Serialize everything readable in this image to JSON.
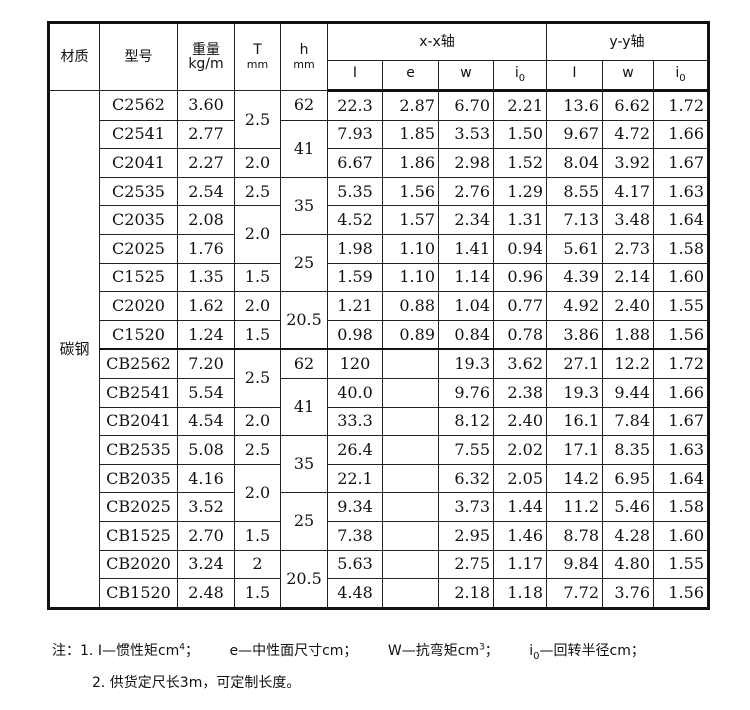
{
  "header": {
    "material": "材质",
    "model": "型号",
    "weight": "重量",
    "weight_unit": "kg/m",
    "T": "T",
    "T_unit": "mm",
    "h": "h",
    "h_unit": "mm",
    "xx_axis": "x-x轴",
    "yy_axis": "y-y轴",
    "xx_cols": [
      {
        "main": "I",
        "sub": ""
      },
      {
        "main": "e",
        "sub": ""
      },
      {
        "main": "w",
        "sub": ""
      },
      {
        "main": "i",
        "sub": "0"
      }
    ],
    "yy_cols": [
      {
        "main": "I",
        "sub": ""
      },
      {
        "main": "w",
        "sub": ""
      },
      {
        "main": "i",
        "sub": "0"
      }
    ]
  },
  "material": "碳钢",
  "rows": [
    {
      "model": "C2562",
      "weight": "3.60",
      "T": "2.5",
      "h": "62",
      "xx": [
        "22.3",
        "2.87",
        "6.70",
        "2.21"
      ],
      "yy": [
        "13.6",
        "6.62",
        "1.72"
      ]
    },
    {
      "model": "C2541",
      "weight": "2.77",
      "T": null,
      "h": "41",
      "xx": [
        "7.93",
        "1.85",
        "3.53",
        "1.50"
      ],
      "yy": [
        "9.67",
        "4.72",
        "1.66"
      ]
    },
    {
      "model": "C2041",
      "weight": "2.27",
      "T": "2.0",
      "h": null,
      "xx": [
        "6.67",
        "1.86",
        "2.98",
        "1.52"
      ],
      "yy": [
        "8.04",
        "3.92",
        "1.67"
      ]
    },
    {
      "model": "C2535",
      "weight": "2.54",
      "T": "2.5",
      "h": "35",
      "xx": [
        "5.35",
        "1.56",
        "2.76",
        "1.29"
      ],
      "yy": [
        "8.55",
        "4.17",
        "1.63"
      ]
    },
    {
      "model": "C2035",
      "weight": "2.08",
      "T": "2.0",
      "h": null,
      "xx": [
        "4.52",
        "1.57",
        "2.34",
        "1.31"
      ],
      "yy": [
        "7.13",
        "3.48",
        "1.64"
      ]
    },
    {
      "model": "C2025",
      "weight": "1.76",
      "T": null,
      "h": "25",
      "xx": [
        "1.98",
        "1.10",
        "1.41",
        "0.94"
      ],
      "yy": [
        "5.61",
        "2.73",
        "1.58"
      ]
    },
    {
      "model": "C1525",
      "weight": "1.35",
      "T": "1.5",
      "h": null,
      "xx": [
        "1.59",
        "1.10",
        "1.14",
        "0.96"
      ],
      "yy": [
        "4.39",
        "2.14",
        "1.60"
      ]
    },
    {
      "model": "C2020",
      "weight": "1.62",
      "T": "2.0",
      "h": "20.5",
      "xx": [
        "1.21",
        "0.88",
        "1.04",
        "0.77"
      ],
      "yy": [
        "4.92",
        "2.40",
        "1.55"
      ]
    },
    {
      "model": "C1520",
      "weight": "1.24",
      "T": "1.5",
      "h": null,
      "xx": [
        "0.98",
        "0.89",
        "0.84",
        "0.78"
      ],
      "yy": [
        "3.86",
        "1.88",
        "1.56"
      ]
    },
    {
      "model": "CB2562",
      "weight": "7.20",
      "T": "2.5",
      "h": "62",
      "xx": [
        "120",
        "",
        "19.3",
        "3.62"
      ],
      "yy": [
        "27.1",
        "12.2",
        "1.72"
      ]
    },
    {
      "model": "CB2541",
      "weight": "5.54",
      "T": null,
      "h": "41",
      "xx": [
        "40.0",
        "",
        "9.76",
        "2.38"
      ],
      "yy": [
        "19.3",
        "9.44",
        "1.66"
      ]
    },
    {
      "model": "CB2041",
      "weight": "4.54",
      "T": "2.0",
      "h": null,
      "xx": [
        "33.3",
        "",
        "8.12",
        "2.40"
      ],
      "yy": [
        "16.1",
        "7.84",
        "1.67"
      ]
    },
    {
      "model": "CB2535",
      "weight": "5.08",
      "T": "2.5",
      "h": "35",
      "xx": [
        "26.4",
        "",
        "7.55",
        "2.02"
      ],
      "yy": [
        "17.1",
        "8.35",
        "1.63"
      ]
    },
    {
      "model": "CB2035",
      "weight": "4.16",
      "T": "2.0",
      "h": null,
      "xx": [
        "22.1",
        "",
        "6.32",
        "2.05"
      ],
      "yy": [
        "14.2",
        "6.95",
        "1.64"
      ]
    },
    {
      "model": "CB2025",
      "weight": "3.52",
      "T": null,
      "h": "25",
      "xx": [
        "9.34",
        "",
        "3.73",
        "1.44"
      ],
      "yy": [
        "11.2",
        "5.46",
        "1.58"
      ]
    },
    {
      "model": "CB1525",
      "weight": "2.70",
      "T": "1.5",
      "h": null,
      "xx": [
        "7.38",
        "",
        "2.95",
        "1.46"
      ],
      "yy": [
        "8.78",
        "4.28",
        "1.60"
      ]
    },
    {
      "model": "CB2020",
      "weight": "3.24",
      "T": "2",
      "h": "20.5",
      "xx": [
        "5.63",
        "",
        "2.75",
        "1.17"
      ],
      "yy": [
        "9.84",
        "4.80",
        "1.55"
      ]
    },
    {
      "model": "CB1520",
      "weight": "2.48",
      "T": "1.5",
      "h": null,
      "xx": [
        "4.48",
        "",
        "2.18",
        "1.18"
      ],
      "yy": [
        "7.72",
        "3.76",
        "1.56"
      ]
    }
  ],
  "notes": {
    "prefix": "注：1. ",
    "I_def": "I—惯性矩cm",
    "I_sup": "4",
    "e_def": "e—中性面尺寸cm；",
    "W_def": "W—抗弯矩cm",
    "W_sup": "3",
    "i_main": "i",
    "i_sub": "0",
    "i_def": "—回转半径cm；",
    "semicolon": "；",
    "line2": "2. 供货定尺长3m，可定制长度。"
  }
}
